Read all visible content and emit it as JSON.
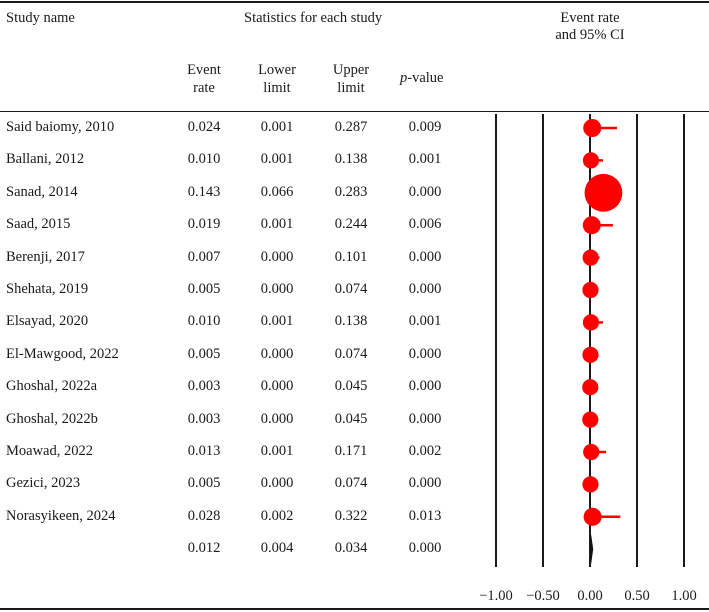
{
  "headers": {
    "study_name": "Study name",
    "stats_title": "Statistics for each study",
    "ci_title_line1": "Event rate",
    "ci_title_line2": "and 95% CI",
    "event_rate_line1": "Event",
    "event_rate_line2": "rate",
    "lower_line1": "Lower",
    "lower_line2": "limit",
    "upper_line1": "Upper",
    "upper_line2": "limit",
    "pvalue_italic": "p",
    "pvalue_rest": "-value"
  },
  "studies": [
    {
      "name": "Said baiomy, 2010",
      "event_rate": "0.024",
      "lower": "0.001",
      "upper": "0.287",
      "p": "0.009"
    },
    {
      "name": "Ballani, 2012",
      "event_rate": "0.010",
      "lower": "0.001",
      "upper": "0.138",
      "p": "0.001"
    },
    {
      "name": "Sanad, 2014",
      "event_rate": "0.143",
      "lower": "0.066",
      "upper": "0.283",
      "p": "0.000"
    },
    {
      "name": "Saad, 2015",
      "event_rate": "0.019",
      "lower": "0.001",
      "upper": "0.244",
      "p": "0.006"
    },
    {
      "name": "Berenji, 2017",
      "event_rate": "0.007",
      "lower": "0.000",
      "upper": "0.101",
      "p": "0.000"
    },
    {
      "name": "Shehata, 2019",
      "event_rate": "0.005",
      "lower": "0.000",
      "upper": "0.074",
      "p": "0.000"
    },
    {
      "name": "Elsayad, 2020",
      "event_rate": "0.010",
      "lower": "0.001",
      "upper": "0.138",
      "p": "0.001"
    },
    {
      "name": "El-Mawgood, 2022",
      "event_rate": "0.005",
      "lower": "0.000",
      "upper": "0.074",
      "p": "0.000"
    },
    {
      "name": "Ghoshal, 2022a",
      "event_rate": "0.003",
      "lower": "0.000",
      "upper": "0.045",
      "p": "0.000"
    },
    {
      "name": "Ghoshal, 2022b",
      "event_rate": "0.003",
      "lower": "0.000",
      "upper": "0.045",
      "p": "0.000"
    },
    {
      "name": "Moawad, 2022",
      "event_rate": "0.013",
      "lower": "0.001",
      "upper": "0.171",
      "p": "0.002"
    },
    {
      "name": "Gezici, 2023",
      "event_rate": "0.005",
      "lower": "0.000",
      "upper": "0.074",
      "p": "0.000"
    },
    {
      "name": "Norasyikeen, 2024",
      "event_rate": "0.028",
      "lower": "0.002",
      "upper": "0.322",
      "p": "0.013"
    }
  ],
  "pooled": {
    "name": "",
    "event_rate": "0.012",
    "lower": "0.004",
    "upper": "0.034",
    "p": "0.000"
  },
  "chart_data": {
    "type": "scatter",
    "title": "Event rate and 95% CI",
    "xlim": [
      -1.0,
      1.0
    ],
    "xticks": [
      "−1.00",
      "−0.50",
      "0.00",
      "0.50",
      "1.00"
    ],
    "xtick_values": [
      -1.0,
      -0.5,
      0.0,
      0.5,
      1.0
    ],
    "grid": true,
    "marker_color": "#ff0000",
    "series": [
      {
        "studies": [
          "Said baiomy, 2010",
          "Ballani, 2012",
          "Sanad, 2014",
          "Saad, 2015",
          "Berenji, 2017",
          "Shehata, 2019",
          "Elsayad, 2020",
          "El-Mawgood, 2022",
          "Ghoshal, 2022a",
          "Ghoshal, 2022b",
          "Moawad, 2022",
          "Gezici, 2023",
          "Norasyikeen, 2024"
        ],
        "event_rate": [
          0.024,
          0.01,
          0.143,
          0.019,
          0.007,
          0.005,
          0.01,
          0.005,
          0.003,
          0.003,
          0.013,
          0.005,
          0.028
        ],
        "lower": [
          0.001,
          0.001,
          0.066,
          0.001,
          0.0,
          0.0,
          0.001,
          0.0,
          0.0,
          0.0,
          0.001,
          0.0,
          0.002
        ],
        "upper": [
          0.287,
          0.138,
          0.283,
          0.244,
          0.101,
          0.074,
          0.138,
          0.074,
          0.045,
          0.045,
          0.171,
          0.074,
          0.322
        ],
        "weight": [
          1.0,
          0.9,
          2.1,
          1.0,
          0.9,
          0.9,
          0.9,
          0.9,
          0.9,
          0.9,
          0.9,
          0.9,
          1.0
        ]
      }
    ],
    "pooled": {
      "event_rate": 0.012,
      "lower": 0.004,
      "upper": 0.034
    }
  }
}
